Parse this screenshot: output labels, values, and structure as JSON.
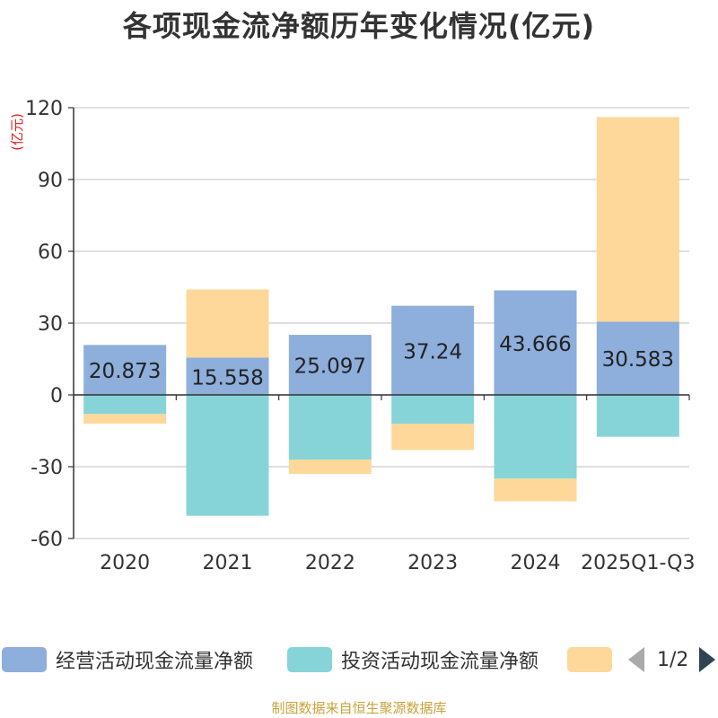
{
  "chart_data": {
    "type": "bar",
    "stacked": true,
    "title": "各项现金流净额历年变化情况(亿元)",
    "ylabel": "(亿元)",
    "xlabel": "",
    "categories": [
      "2020",
      "2021",
      "2022",
      "2023",
      "2024",
      "2025Q1-Q3"
    ],
    "ylim": [
      -60,
      120
    ],
    "yticks": [
      120,
      90,
      60,
      30,
      0,
      -30,
      -60
    ],
    "yticks_labels": [
      "120",
      "90",
      "60",
      "30",
      "0",
      "-30",
      "-60"
    ],
    "series": [
      {
        "name": "经营活动现金流量净额",
        "color": "#8eaedb",
        "values": [
          20.873,
          15.558,
          25.097,
          37.24,
          43.666,
          30.583
        ],
        "labels": [
          "20.873",
          "15.558",
          "25.097",
          "37.24",
          "43.666",
          "30.583"
        ]
      },
      {
        "name": "投资活动现金流量净额",
        "color": "#86d4d8",
        "values": [
          -8,
          -50.5,
          -27,
          -12,
          -35,
          -17.5
        ]
      },
      {
        "name": "",
        "color": "#fdd89a",
        "values": [
          -4,
          28.5,
          -6,
          -11,
          -9.5,
          85.5
        ]
      }
    ],
    "legend": {
      "position": "bottom",
      "page": "1/2"
    },
    "grid": true
  },
  "source_note": "制图数据来自恒生聚源数据库"
}
